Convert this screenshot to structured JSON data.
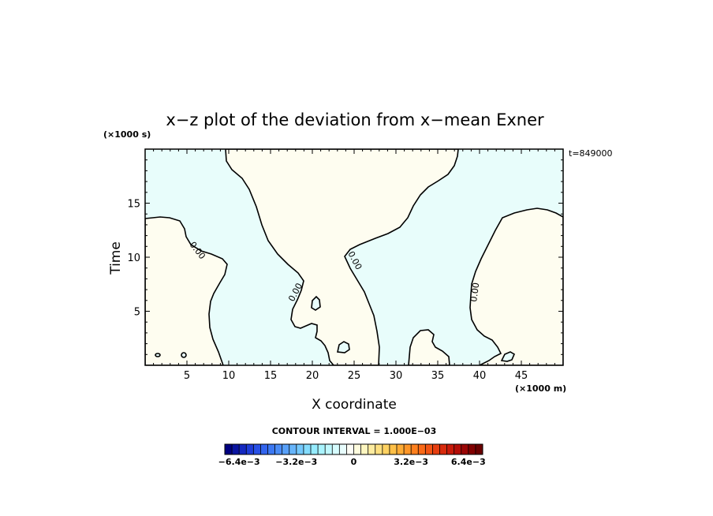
{
  "chart_data": {
    "type": "heatmap",
    "title": "x−z plot of the deviation from x−mean Exner",
    "xlabel": "X coordinate",
    "ylabel": "Time",
    "x_unit": "(×1000 m)",
    "y_unit": "(×1000 s)",
    "xlim": [
      0,
      50
    ],
    "ylim": [
      0,
      20
    ],
    "x_ticks": [
      5,
      10,
      15,
      20,
      25,
      30,
      35,
      40,
      45
    ],
    "y_ticks": [
      5,
      10,
      15
    ],
    "time_stamp": "t=849000",
    "contour_interval_text": "CONTOUR INTERVAL = 1.000E−03",
    "contour_labels": [
      "0.00",
      "0.00",
      "0.00",
      "0.00"
    ],
    "contour_level": 0,
    "colors": {
      "positive": "#fefdf0",
      "negative": "#e8fdfb",
      "contour": "#000000",
      "frame": "#000000"
    },
    "colorbar": {
      "min": -0.0072,
      "max": 0.0072,
      "ticks": [
        {
          "value": -0.0064,
          "label": "−6.4e−3"
        },
        {
          "value": -0.0032,
          "label": "−3.2e−3"
        },
        {
          "value": 0,
          "label": "0"
        },
        {
          "value": 0.0032,
          "label": "3.2e−3"
        },
        {
          "value": 0.0064,
          "label": "6.4e−3"
        }
      ],
      "colors": [
        "#000080",
        "#0a14a0",
        "#1428c0",
        "#1e3cd8",
        "#2850e6",
        "#3264ee",
        "#3c78f2",
        "#4a8cf6",
        "#58a0f8",
        "#66b4fa",
        "#74c8fc",
        "#84dcfe",
        "#96ecfe",
        "#aaf4fe",
        "#c0f8fe",
        "#d6fcfe",
        "#e8fdfd",
        "#fdfdf6",
        "#fefcde",
        "#fef6c0",
        "#feeca0",
        "#fee080",
        "#fed262",
        "#fec048",
        "#feac36",
        "#fe9628",
        "#fe801e",
        "#fa6a18",
        "#f25414",
        "#e63e10",
        "#d82a0c",
        "#c81a0a",
        "#b40e08",
        "#9a0606",
        "#800000",
        "#6a0000"
      ]
    }
  }
}
